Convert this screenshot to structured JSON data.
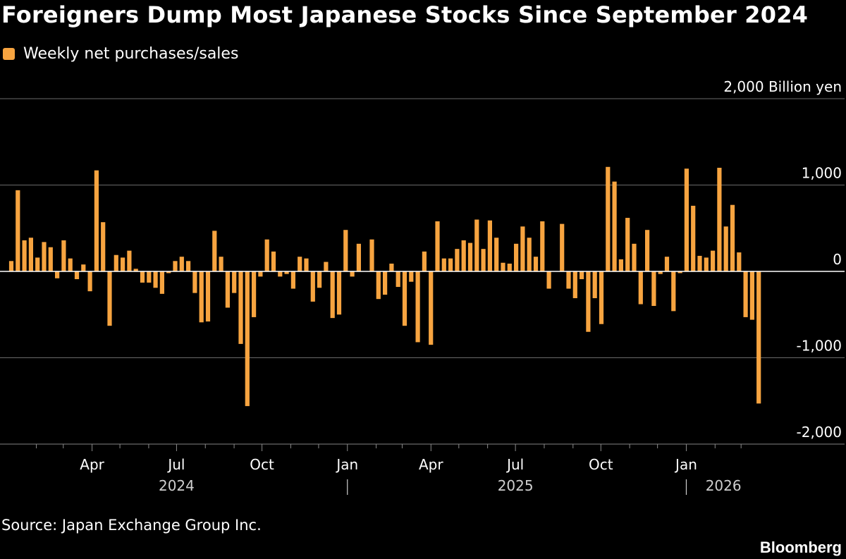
{
  "header": {
    "title": "Foreigners Dump Most Japanese Stocks Since September 2024"
  },
  "legend": {
    "label": "Weekly net purchases/sales",
    "color": "#f7a440"
  },
  "footer": {
    "source": "Source: Japan Exchange Group Inc.",
    "brand": "Bloomberg"
  },
  "colors": {
    "background": "#000000",
    "grid": "#6a6a6a",
    "zero_line": "#ffffff",
    "text": "#ffffff",
    "bar": "#f7a440"
  },
  "chart_data": {
    "type": "bar",
    "title": "Foreigners Dump Most Japanese Stocks Since September 2024",
    "ylabel": "Billion yen",
    "ylim": [
      -2000,
      2000
    ],
    "y_ticks": [
      2000,
      1000,
      0,
      -1000,
      -2000
    ],
    "y_tick_labels": [
      "2,000 Billion yen",
      "1,000",
      "0",
      "-1,000",
      "-2,000"
    ],
    "x_start_date": "2024-01-05",
    "x_end_date": "2026-03-20",
    "month_labels": [
      {
        "date": "2024-04-01",
        "label": "Apr"
      },
      {
        "date": "2024-07-01",
        "label": "Jul"
      },
      {
        "date": "2024-10-01",
        "label": "Oct"
      },
      {
        "date": "2025-01-01",
        "label": "Jan"
      },
      {
        "date": "2025-04-01",
        "label": "Apr"
      },
      {
        "date": "2025-07-01",
        "label": "Jul"
      },
      {
        "date": "2025-10-01",
        "label": "Oct"
      },
      {
        "date": "2026-01-01",
        "label": "Jan"
      }
    ],
    "year_labels": [
      {
        "year": "2024",
        "center_date": "2024-07-01"
      },
      {
        "year": "2025",
        "center_date": "2025-07-01"
      },
      {
        "year": "2026",
        "center_date": "2026-02-10"
      }
    ],
    "year_separators": [
      "2025-01-01",
      "2026-01-01"
    ],
    "series": [
      {
        "name": "Weekly net purchases/sales",
        "values": [
          120,
          940,
          360,
          390,
          160,
          340,
          280,
          -80,
          360,
          150,
          -90,
          80,
          -230,
          1170,
          570,
          -630,
          190,
          160,
          240,
          30,
          -130,
          -130,
          -190,
          -260,
          -20,
          120,
          170,
          120,
          -250,
          -590,
          -580,
          470,
          170,
          -420,
          -250,
          -840,
          -1560,
          -530,
          -60,
          370,
          230,
          -60,
          -30,
          -200,
          170,
          150,
          -350,
          -190,
          110,
          -540,
          -500,
          480,
          -60,
          320,
          0,
          370,
          -320,
          -270,
          90,
          -180,
          -630,
          -120,
          -820,
          230,
          -850,
          580,
          150,
          150,
          260,
          360,
          330,
          600,
          260,
          590,
          390,
          100,
          90,
          320,
          520,
          390,
          170,
          580,
          -200,
          0,
          550,
          -200,
          -310,
          -90,
          -700,
          -310,
          -610,
          1210,
          1040,
          140,
          620,
          320,
          -380,
          480,
          -400,
          -30,
          170,
          -460,
          -20,
          1190,
          760,
          180,
          160,
          240,
          1200,
          520,
          770,
          220,
          -530,
          -560,
          -1530
        ]
      }
    ]
  }
}
